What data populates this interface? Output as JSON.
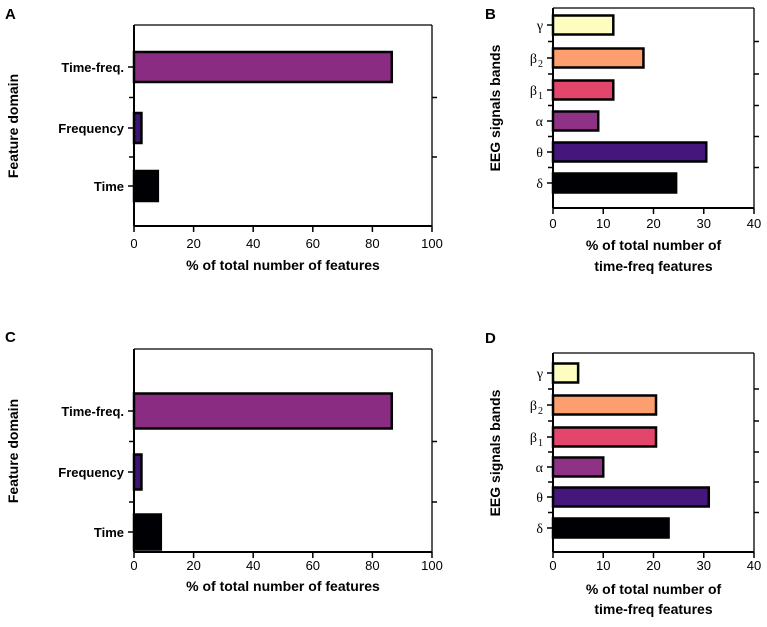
{
  "colors": {
    "gamma": "#fcfdbf",
    "beta2": "#fc9e6e",
    "beta1": "#e2466b",
    "alpha": "#8f3286",
    "theta": "#45167c",
    "delta": "#000004",
    "timefreq_domain": "#8a2c82",
    "frequency_domain": "#3d1578",
    "time_domain": "#000004"
  },
  "chart_data": [
    {
      "panel": "A",
      "type": "bar",
      "orientation": "horizontal",
      "categories": [
        "Time-freq.",
        "Frequency",
        "Time"
      ],
      "values": [
        86.5,
        2.5,
        8
      ],
      "color_keys": [
        "timefreq_domain",
        "frequency_domain",
        "time_domain"
      ],
      "ylabel": "Feature domain",
      "xlabel_lines": [
        "% of total number of features"
      ],
      "xlim": [
        0,
        100
      ],
      "xticks": [
        "0",
        "20",
        "40",
        "60",
        "80",
        "100"
      ]
    },
    {
      "panel": "B",
      "type": "bar",
      "orientation": "horizontal",
      "categories": [
        "γ",
        "β2",
        "β1",
        "α",
        "θ",
        "δ"
      ],
      "category_main": [
        "γ",
        "β",
        "β",
        "α",
        "θ",
        "δ"
      ],
      "category_sub": [
        "",
        "2",
        "1",
        "",
        "",
        ""
      ],
      "values": [
        12,
        18,
        12,
        9,
        30.5,
        24.5
      ],
      "color_keys": [
        "gamma",
        "beta2",
        "beta1",
        "alpha",
        "theta",
        "delta"
      ],
      "ylabel": "EEG signals bands",
      "xlabel_lines": [
        "% of total number of",
        "time-freq features"
      ],
      "xlim": [
        0,
        40
      ],
      "xticks": [
        "0",
        "10",
        "20",
        "30",
        "40"
      ]
    },
    {
      "panel": "C",
      "type": "bar",
      "orientation": "horizontal",
      "categories": [
        "Time-freq.",
        "Frequency",
        "Time"
      ],
      "values": [
        86.5,
        2.5,
        9
      ],
      "color_keys": [
        "timefreq_domain",
        "frequency_domain",
        "time_domain"
      ],
      "ylabel": "Feature domain",
      "xlabel_lines": [
        "% of total number of features"
      ],
      "xlim": [
        0,
        100
      ],
      "xticks": [
        "0",
        "20",
        "40",
        "60",
        "80",
        "100"
      ]
    },
    {
      "panel": "D",
      "type": "bar",
      "orientation": "horizontal",
      "categories": [
        "γ",
        "β2",
        "β1",
        "α",
        "θ",
        "δ"
      ],
      "category_main": [
        "γ",
        "β",
        "β",
        "α",
        "θ",
        "δ"
      ],
      "category_sub": [
        "",
        "2",
        "1",
        "",
        "",
        ""
      ],
      "values": [
        5,
        20.5,
        20.5,
        10,
        31,
        23
      ],
      "color_keys": [
        "gamma",
        "beta2",
        "beta1",
        "alpha",
        "theta",
        "delta"
      ],
      "ylabel": "EEG signals bands",
      "xlabel_lines": [
        "% of total number of",
        "time-freq features"
      ],
      "xlim": [
        0,
        40
      ],
      "xticks": [
        "0",
        "10",
        "20",
        "30",
        "40"
      ]
    }
  ]
}
